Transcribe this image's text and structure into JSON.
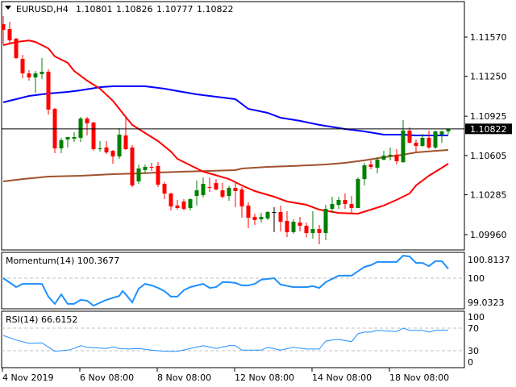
{
  "header": {
    "symbol": "EURUSD,H4",
    "open": "1.10801",
    "high": "1.10826",
    "low": "1.10777",
    "close": "1.10822"
  },
  "colors": {
    "bull": "#008000",
    "bear": "#ff0000",
    "doji": "#000000",
    "ma_fast": "#ff0000",
    "ma_mid": "#0000ff",
    "ma_slow": "#a0522d",
    "osc": "#1e90ff",
    "grid_dash": "#c0c0c0"
  },
  "price_axis": {
    "labels": [
      "1.11570",
      "1.11250",
      "1.10925",
      "1.10605",
      "1.10285",
      "1.09960"
    ],
    "current": "1.10822"
  },
  "time_axis": {
    "labels": [
      "4 Nov 2019",
      "6 Nov 08:00",
      "8 Nov 08:00",
      "12 Nov 08:00",
      "14 Nov 08:00",
      "18 Nov 08:00"
    ],
    "label_candle_index": [
      0,
      12,
      24,
      36,
      48,
      60
    ]
  },
  "momentum": {
    "title": "Momentum(14) 100.3677",
    "axis_labels": [
      "100.8137",
      "100",
      "99.0323"
    ],
    "series": [
      [
        0,
        100
      ],
      [
        2,
        99.64
      ],
      [
        3,
        99.77
      ],
      [
        6,
        99.77
      ],
      [
        7,
        99.26
      ],
      [
        8,
        98.97
      ],
      [
        9,
        99.35
      ],
      [
        10,
        98.97
      ],
      [
        11,
        98.97
      ],
      [
        12,
        99.13
      ],
      [
        13,
        99.1
      ],
      [
        14,
        98.9
      ],
      [
        16,
        99.13
      ],
      [
        18,
        99.29
      ],
      [
        18.5,
        99.48
      ],
      [
        19,
        99.35
      ],
      [
        20,
        99.03
      ],
      [
        21,
        99.58
      ],
      [
        22,
        99.77
      ],
      [
        23,
        99.71
      ],
      [
        24,
        99.61
      ],
      [
        25,
        99.48
      ],
      [
        26,
        99.26
      ],
      [
        27,
        99.26
      ],
      [
        28,
        99.52
      ],
      [
        29,
        99.64
      ],
      [
        31,
        99.77
      ],
      [
        32,
        99.61
      ],
      [
        33,
        99.64
      ],
      [
        34,
        99.84
      ],
      [
        35,
        99.84
      ],
      [
        36,
        99.81
      ],
      [
        37,
        99.71
      ],
      [
        38,
        99.71
      ],
      [
        39,
        99.77
      ],
      [
        40,
        99.94
      ],
      [
        42,
        100
      ],
      [
        43,
        99.74
      ],
      [
        45,
        99.64
      ],
      [
        47,
        99.64
      ],
      [
        48,
        99.68
      ],
      [
        49,
        99.61
      ],
      [
        50,
        99.84
      ],
      [
        52,
        100.1
      ],
      [
        54,
        100.1
      ],
      [
        56,
        100.45
      ],
      [
        57,
        100.52
      ],
      [
        58,
        100.65
      ],
      [
        61,
        100.65
      ],
      [
        62,
        100.9
      ],
      [
        63,
        100.87
      ],
      [
        64,
        100.61
      ],
      [
        65,
        100.61
      ],
      [
        66,
        100.48
      ],
      [
        67,
        100.68
      ],
      [
        68,
        100.68
      ],
      [
        69,
        100.37
      ]
    ]
  },
  "rsi": {
    "title": "RSI(14) 66.6152",
    "axis_labels": [
      "100",
      "70",
      "30",
      "0"
    ],
    "series": [
      [
        0,
        57
      ],
      [
        2,
        49
      ],
      [
        4,
        43
      ],
      [
        6,
        44
      ],
      [
        8,
        29
      ],
      [
        10,
        31
      ],
      [
        11,
        34
      ],
      [
        12,
        39
      ],
      [
        13,
        36
      ],
      [
        16,
        34
      ],
      [
        17,
        37
      ],
      [
        18,
        34
      ],
      [
        19.5,
        33
      ],
      [
        21,
        34
      ],
      [
        23,
        31
      ],
      [
        25,
        29
      ],
      [
        27,
        29
      ],
      [
        29,
        34
      ],
      [
        31,
        39
      ],
      [
        33,
        34
      ],
      [
        35,
        39
      ],
      [
        36,
        39
      ],
      [
        37,
        31
      ],
      [
        40,
        31
      ],
      [
        41,
        36
      ],
      [
        43,
        31
      ],
      [
        45,
        36
      ],
      [
        47,
        33
      ],
      [
        49,
        33
      ],
      [
        50,
        47
      ],
      [
        51,
        49
      ],
      [
        52,
        50
      ],
      [
        54,
        46
      ],
      [
        55,
        60
      ],
      [
        56,
        63
      ],
      [
        57,
        63
      ],
      [
        58,
        66
      ],
      [
        61,
        64
      ],
      [
        62,
        70
      ],
      [
        63,
        66
      ],
      [
        65,
        66
      ],
      [
        66,
        63
      ],
      [
        67,
        66
      ],
      [
        69,
        66.6
      ]
    ]
  },
  "chart_data": {
    "type": "candlestick",
    "title": "EURUSD,H4",
    "ylim": [
      1.095,
      1.1187
    ],
    "candles": [
      [
        1.11675,
        1.11741,
        1.11511,
        1.11629
      ],
      [
        1.11635,
        1.11695,
        1.11511,
        1.11543
      ],
      [
        1.11557,
        1.11563,
        1.11392,
        1.11399
      ],
      [
        1.11392,
        1.11425,
        1.11235,
        1.11274
      ],
      [
        1.11274,
        1.113,
        1.11215,
        1.11241
      ],
      [
        1.11241,
        1.11294,
        1.11116,
        1.11274
      ],
      [
        1.11268,
        1.11399,
        1.11228,
        1.11287
      ],
      [
        1.11287,
        1.11307,
        1.10939,
        1.10979
      ],
      [
        1.10985,
        1.10992,
        1.10624,
        1.10663
      ],
      [
        1.10663,
        1.10749,
        1.10624,
        1.10729
      ],
      [
        1.10735,
        1.10755,
        1.1067,
        1.10755
      ],
      [
        1.10742,
        1.10795,
        1.10716,
        1.10755
      ],
      [
        1.10749,
        1.10919,
        1.10716,
        1.10906
      ],
      [
        1.10906,
        1.10919,
        1.10768,
        1.10867
      ],
      [
        1.10873,
        1.1088,
        1.10643,
        1.10657
      ],
      [
        1.10657,
        1.10722,
        1.10637,
        1.10663
      ],
      [
        1.1067,
        1.10722,
        1.10617,
        1.1063
      ],
      [
        1.10643,
        1.1065,
        1.10538,
        1.10597
      ],
      [
        1.10597,
        1.10827,
        1.10578,
        1.10775
      ],
      [
        1.10768,
        1.10913,
        1.1065,
        1.10657
      ],
      [
        1.1067,
        1.1069,
        1.10348,
        1.10361
      ],
      [
        1.10394,
        1.10532,
        1.10374,
        1.10499
      ],
      [
        1.10486,
        1.10532,
        1.10459,
        1.10512
      ],
      [
        1.10512,
        1.10545,
        1.10479,
        1.10505
      ],
      [
        1.10519,
        1.10551,
        1.10348,
        1.10367
      ],
      [
        1.10374,
        1.10387,
        1.10249,
        1.10295
      ],
      [
        1.10295,
        1.10302,
        1.10157,
        1.1019
      ],
      [
        1.10197,
        1.10243,
        1.10164,
        1.10177
      ],
      [
        1.1023,
        1.10249,
        1.10157,
        1.1017
      ],
      [
        1.10177,
        1.10256,
        1.10157,
        1.10249
      ],
      [
        1.10275,
        1.104,
        1.10197,
        1.10321
      ],
      [
        1.10282,
        1.10427,
        1.10262,
        1.10374
      ],
      [
        1.10348,
        1.10427,
        1.10308,
        1.10341
      ],
      [
        1.10381,
        1.10413,
        1.10321,
        1.10328
      ],
      [
        1.10321,
        1.10381,
        1.10256,
        1.10269
      ],
      [
        1.10275,
        1.10354,
        1.10236,
        1.10341
      ],
      [
        1.10341,
        1.10381,
        1.10184,
        1.10315
      ],
      [
        1.10328,
        1.10348,
        1.10098,
        1.1019
      ],
      [
        1.10197,
        1.10223,
        1.10013,
        1.10098
      ],
      [
        1.10105,
        1.10131,
        1.10039,
        1.10079
      ],
      [
        1.10085,
        1.10137,
        1.10059,
        1.10105
      ],
      [
        1.10092,
        1.10151,
        1.10079,
        1.10144
      ],
      [
        1.10144,
        1.10184,
        1.0998,
        1.10144
      ],
      [
        1.10144,
        1.10197,
        1.09986,
        1.10065
      ],
      [
        1.10072,
        1.10151,
        1.0994,
        1.0998
      ],
      [
        1.0998,
        1.10085,
        1.09967,
        1.10065
      ],
      [
        1.10059,
        1.10105,
        1.09986,
        1.10032
      ],
      [
        1.10032,
        1.10059,
        1.0994,
        1.09973
      ],
      [
        1.09973,
        1.10151,
        1.09927,
        1.10006
      ],
      [
        1.10006,
        1.10039,
        1.09881,
        1.09973
      ],
      [
        1.09973,
        1.10203,
        1.09914,
        1.1017
      ],
      [
        1.1017,
        1.10269,
        1.10137,
        1.1021
      ],
      [
        1.10203,
        1.10269,
        1.1017,
        1.10243
      ],
      [
        1.10243,
        1.10295,
        1.1017,
        1.1021
      ],
      [
        1.1021,
        1.10275,
        1.10131,
        1.10177
      ],
      [
        1.10177,
        1.10427,
        1.10177,
        1.10413
      ],
      [
        1.10413,
        1.10545,
        1.10361,
        1.10525
      ],
      [
        1.10532,
        1.10565,
        1.10492,
        1.10512
      ],
      [
        1.10505,
        1.10591,
        1.10459,
        1.10571
      ],
      [
        1.10571,
        1.10643,
        1.10565,
        1.10604
      ],
      [
        1.10604,
        1.1067,
        1.10565,
        1.10611
      ],
      [
        1.10611,
        1.10657,
        1.10532,
        1.10558
      ],
      [
        1.10551,
        1.10893,
        1.10545,
        1.10808
      ],
      [
        1.10808,
        1.10834,
        1.10703,
        1.10709
      ],
      [
        1.10709,
        1.10735,
        1.10637,
        1.10683
      ],
      [
        1.10683,
        1.10781,
        1.10676,
        1.10749
      ],
      [
        1.10749,
        1.10808,
        1.10657,
        1.1067
      ],
      [
        1.1067,
        1.10808,
        1.10657,
        1.10801
      ],
      [
        1.10775,
        1.10808,
        1.10709,
        1.10801
      ],
      [
        1.10801,
        1.10826,
        1.10777,
        1.10822
      ]
    ],
    "ma_fast": [
      [
        0,
        1.11504
      ],
      [
        2,
        1.1153
      ],
      [
        4,
        1.11543
      ],
      [
        5,
        1.1153
      ],
      [
        7,
        1.11478
      ],
      [
        8,
        1.11412
      ],
      [
        10,
        1.1136
      ],
      [
        11,
        1.11294
      ],
      [
        13,
        1.11215
      ],
      [
        15,
        1.11149
      ],
      [
        17,
        1.11051
      ],
      [
        19,
        1.10919
      ],
      [
        20,
        1.10854
      ],
      [
        22,
        1.10788
      ],
      [
        24,
        1.10722
      ],
      [
        26,
        1.10637
      ],
      [
        27,
        1.10578
      ],
      [
        29,
        1.10525
      ],
      [
        31,
        1.10473
      ],
      [
        32,
        1.10459
      ],
      [
        35,
        1.10413
      ],
      [
        37,
        1.10361
      ],
      [
        39,
        1.10315
      ],
      [
        42,
        1.10269
      ],
      [
        44,
        1.1023
      ],
      [
        47,
        1.10203
      ],
      [
        49,
        1.10164
      ],
      [
        52,
        1.10137
      ],
      [
        55,
        1.10131
      ],
      [
        57,
        1.10164
      ],
      [
        59,
        1.10197
      ],
      [
        61,
        1.10243
      ],
      [
        63,
        1.10295
      ],
      [
        64,
        1.10361
      ],
      [
        66,
        1.1044
      ],
      [
        68,
        1.10505
      ],
      [
        69,
        1.10538
      ]
    ],
    "ma_mid": [
      [
        0,
        1.11038
      ],
      [
        2,
        1.11064
      ],
      [
        4,
        1.1109
      ],
      [
        7,
        1.1111
      ],
      [
        10,
        1.11123
      ],
      [
        12,
        1.11136
      ],
      [
        15,
        1.11162
      ],
      [
        17,
        1.11169
      ],
      [
        20,
        1.11169
      ],
      [
        22,
        1.11169
      ],
      [
        25,
        1.11149
      ],
      [
        27,
        1.1113
      ],
      [
        30,
        1.11103
      ],
      [
        32,
        1.1109
      ],
      [
        36,
        1.11064
      ],
      [
        38,
        1.10985
      ],
      [
        41,
        1.10952
      ],
      [
        43,
        1.10913
      ],
      [
        46,
        1.10887
      ],
      [
        49,
        1.10854
      ],
      [
        53,
        1.10821
      ],
      [
        56,
        1.10801
      ],
      [
        59,
        1.10775
      ],
      [
        62,
        1.10775
      ],
      [
        64,
        1.10768
      ],
      [
        69,
        1.10768
      ]
    ],
    "ma_slow": [
      [
        0,
        1.10394
      ],
      [
        3,
        1.10413
      ],
      [
        7,
        1.10433
      ],
      [
        12,
        1.1044
      ],
      [
        17,
        1.10453
      ],
      [
        21,
        1.10459
      ],
      [
        24,
        1.10466
      ],
      [
        28,
        1.10473
      ],
      [
        32,
        1.10479
      ],
      [
        36,
        1.10486
      ],
      [
        37,
        1.10499
      ],
      [
        41,
        1.10512
      ],
      [
        45,
        1.10519
      ],
      [
        50,
        1.10532
      ],
      [
        53,
        1.10545
      ],
      [
        56,
        1.10565
      ],
      [
        59,
        1.10591
      ],
      [
        62,
        1.10611
      ],
      [
        64,
        1.1063
      ],
      [
        67,
        1.10643
      ],
      [
        69,
        1.1065
      ]
    ]
  }
}
